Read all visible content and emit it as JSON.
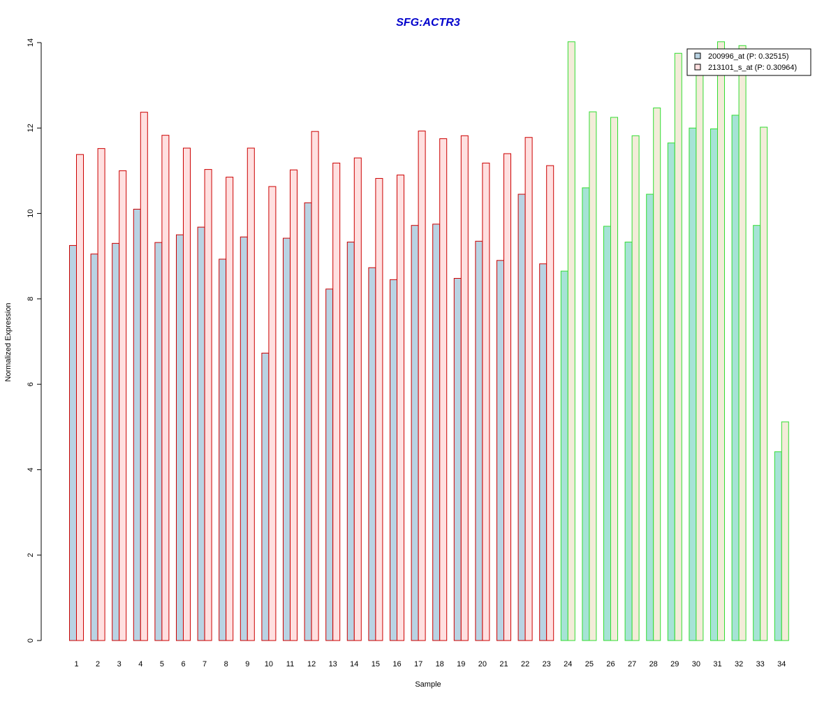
{
  "chart_data": {
    "type": "bar",
    "title": "SFG:ACTR3",
    "xlabel": "Sample",
    "ylabel": "Normalized Expression",
    "ylim": [
      0,
      14
    ],
    "yticks": [
      0,
      2,
      4,
      6,
      8,
      10,
      12,
      14
    ],
    "grid": false,
    "legend_position": "top-right",
    "categories": [
      "1",
      "2",
      "3",
      "4",
      "5",
      "6",
      "7",
      "8",
      "9",
      "10",
      "11",
      "12",
      "13",
      "14",
      "15",
      "16",
      "17",
      "18",
      "19",
      "20",
      "21",
      "22",
      "23",
      "24",
      "25",
      "26",
      "27",
      "28",
      "29",
      "30",
      "31",
      "32",
      "33",
      "34"
    ],
    "group_split_after": 23,
    "series": [
      {
        "name": "200996_at (P: 0.32515)",
        "values": [
          9.25,
          9.05,
          9.3,
          10.1,
          9.32,
          9.5,
          9.68,
          8.93,
          9.45,
          6.73,
          9.42,
          10.25,
          8.23,
          9.33,
          8.73,
          8.45,
          9.72,
          9.75,
          8.48,
          9.35,
          8.9,
          10.45,
          8.82,
          8.65,
          10.6,
          9.7,
          9.33,
          10.45,
          11.65,
          12.0,
          11.98,
          12.3,
          9.72,
          4.42
        ]
      },
      {
        "name": "213101_s_at (P: 0.30964)",
        "values": [
          11.38,
          11.52,
          11.0,
          12.37,
          11.83,
          11.53,
          11.03,
          10.85,
          11.53,
          10.63,
          11.02,
          11.92,
          11.18,
          11.3,
          10.82,
          10.9,
          11.93,
          11.75,
          11.82,
          11.18,
          11.4,
          11.78,
          11.12,
          14.02,
          12.38,
          12.25,
          11.82,
          12.47,
          13.75,
          13.5,
          14.02,
          13.93,
          12.02,
          5.12
        ]
      }
    ],
    "colors": {
      "title": "#0000cc",
      "series1_fill_group1": "#b9d3e3",
      "series2_fill_group1": "#ffe0e0",
      "stroke_group1": "#cc0000",
      "series1_fill_group2": "#a6e3d6",
      "series2_fill_group2": "#f3ecd9",
      "stroke_group2": "#33dd33",
      "legend_swatch1": "#b9d3e3",
      "legend_swatch2": "#ffe0e0",
      "axis": "#000000"
    }
  }
}
